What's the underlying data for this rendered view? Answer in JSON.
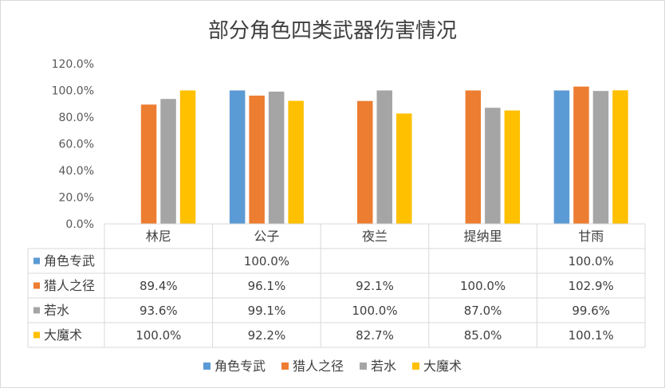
{
  "chart_data": {
    "type": "bar",
    "title": "部分角色四类武器伤害情况",
    "categories": [
      "林尼",
      "公子",
      "夜兰",
      "提纳里",
      "甘雨"
    ],
    "y_ticks": [
      "0.0%",
      "20.0%",
      "40.0%",
      "60.0%",
      "80.0%",
      "100.0%",
      "120.0%"
    ],
    "ylim": [
      0,
      120
    ],
    "grid": false,
    "legend_position": "bottom",
    "data_table": true,
    "series": [
      {
        "name": "角色专武",
        "color": "#5B9BD5",
        "values": [
          null,
          100.0,
          null,
          null,
          100.0
        ],
        "labels": [
          "",
          "100.0%",
          "",
          "",
          "100.0%"
        ]
      },
      {
        "name": "猎人之径",
        "color": "#ED7D31",
        "values": [
          89.4,
          96.1,
          92.1,
          100.0,
          102.9
        ],
        "labels": [
          "89.4%",
          "96.1%",
          "92.1%",
          "100.0%",
          "102.9%"
        ]
      },
      {
        "name": "若水",
        "color": "#A5A5A5",
        "values": [
          93.6,
          99.1,
          100.0,
          87.0,
          99.6
        ],
        "labels": [
          "93.6%",
          "99.1%",
          "100.0%",
          "87.0%",
          "99.6%"
        ]
      },
      {
        "name": "大魔术",
        "color": "#FFC000",
        "values": [
          100.0,
          92.2,
          82.7,
          85.0,
          100.1
        ],
        "labels": [
          "100.0%",
          "92.2%",
          "82.7%",
          "85.0%",
          "100.1%"
        ]
      }
    ]
  }
}
